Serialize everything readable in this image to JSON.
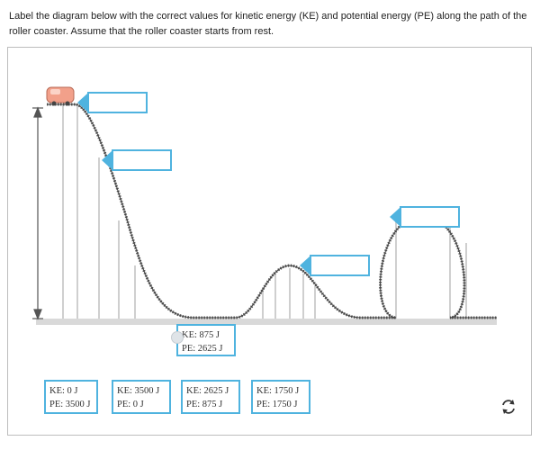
{
  "question": "Label the diagram below with the correct values for kinetic energy (KE) and potential energy (PE) along the path of the roller coaster. Assume that the roller coaster starts from rest.",
  "placed_label": {
    "ke": "KE: 875 J",
    "pe": "PE: 2625 J"
  },
  "options": [
    {
      "ke": "KE: 0 J",
      "pe": "PE: 3500 J"
    },
    {
      "ke": "KE: 3500 J",
      "pe": "PE: 0 J"
    },
    {
      "ke": "KE: 2625 J",
      "pe": "PE: 875 J"
    },
    {
      "ke": "KE: 1750 J",
      "pe": "PE: 1750 J"
    }
  ],
  "icons": {
    "reset": "refresh-icon"
  },
  "colors": {
    "accent": "#4fb3df",
    "track": "#555555",
    "car": "#f2a08a"
  }
}
